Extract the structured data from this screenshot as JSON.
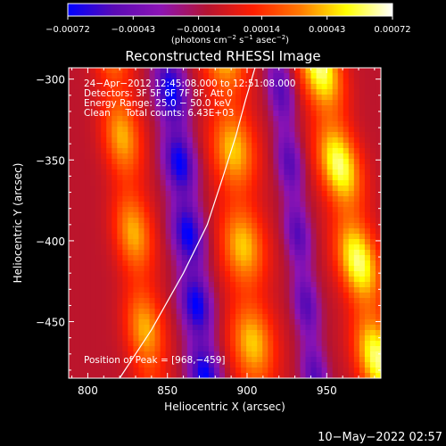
{
  "chart_data": {
    "type": "heatmap",
    "title": "Reconstructed RHESSI Image",
    "xlabel": "Heliocentric X (arcsec)",
    "ylabel": "Heliocentric Y (arcsec)",
    "xlim": [
      788,
      984
    ],
    "ylim": [
      -485,
      -293
    ],
    "xticks": [
      800,
      850,
      900,
      950
    ],
    "xtick_labels": [
      "800",
      "850",
      "900",
      "950"
    ],
    "yticks": [
      -300,
      -350,
      -400,
      -450
    ],
    "ytick_labels": [
      "−300",
      "−350",
      "−400",
      "−450"
    ],
    "colorbar": {
      "min": -0.00072,
      "max": 0.00072,
      "ticks": [
        -0.00072,
        -0.00043,
        -0.00014,
        0.00014,
        0.00043,
        0.00072
      ],
      "tick_labels": [
        "−0.00072",
        "−0.00043",
        "−0.00014",
        "0.00014",
        "0.00043",
        "0.00072"
      ],
      "unit_main": "(photons cm",
      "unit_exp1": "−2",
      "unit_mid": " s",
      "unit_exp2": "−1",
      "unit_mid2": " asec",
      "unit_exp3": "−2",
      "unit_end": ")",
      "colormap": [
        "#0000ff",
        "#5a0ab4",
        "#8c14b4",
        "#b41432",
        "#ff1e00",
        "#ff7800",
        "#ffff00",
        "#ffffff"
      ]
    },
    "annotations": [
      "24−Apr−2012 12:45:08.000 to 12:51:08.000",
      "Detectors: 3F 5F 6F 7F 8F, Att 0",
      "Energy Range: 25.0 − 50.0 keV",
      "Clean     Total counts: 6.43E+03"
    ],
    "peak_label": "Position of Peak = [968,−459]",
    "peak": [
      968,
      -459
    ],
    "limb": [
      [
        820,
        -485
      ],
      [
        840,
        -455
      ],
      [
        860,
        -420
      ],
      [
        875,
        -390
      ],
      [
        885,
        -360
      ],
      [
        893,
        -335
      ],
      [
        899,
        -313
      ],
      [
        905,
        -293
      ]
    ],
    "intensity_model": {
      "bright_ridges": [
        {
          "x": 828,
          "slope": -0.12,
          "width": 12,
          "amp": 0.00048
        },
        {
          "x": 896,
          "slope": -0.1,
          "width": 14,
          "amp": 0.00052
        },
        {
          "x": 965,
          "slope": -0.2,
          "width": 13,
          "amp": 0.0007
        }
      ],
      "dark_troughs": [
        {
          "x": 862,
          "slope": -0.12,
          "width": 10,
          "amp": -0.00065
        },
        {
          "x": 931,
          "slope": -0.12,
          "width": 8,
          "amp": -0.00045
        }
      ]
    }
  },
  "footer": {
    "timestamp": "10−May−2022 02:57"
  }
}
